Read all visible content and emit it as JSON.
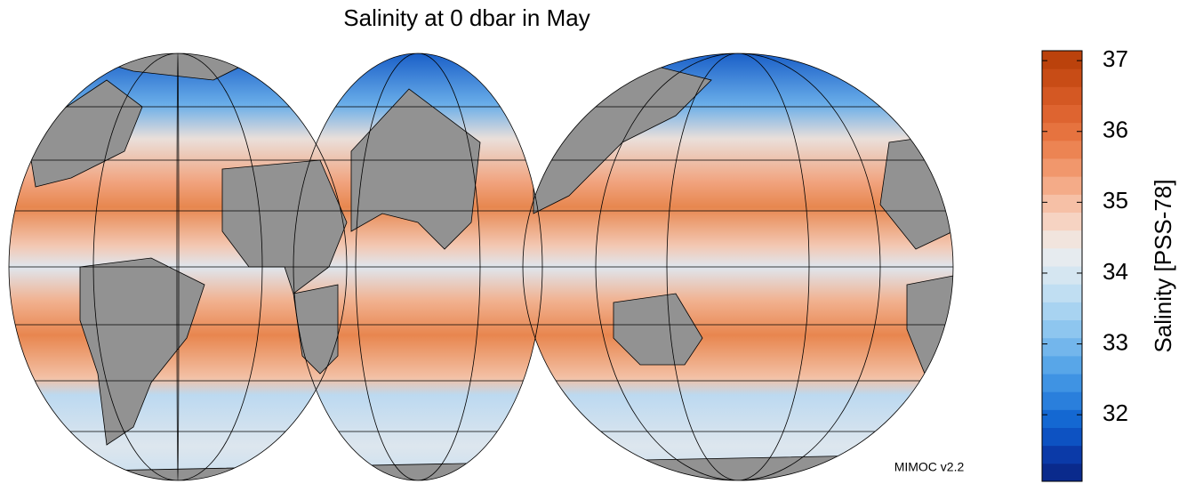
{
  "title": "Salinity at 0 dbar in May",
  "source": "MIMOC v2.2",
  "colorbar": {
    "label": "Salinity [PSS-78]",
    "lim": [
      31.06,
      37.14
    ],
    "ticks": [
      32,
      33,
      34,
      35,
      36,
      37
    ],
    "colors": [
      "#0a2a8c",
      "#0b3aa8",
      "#0d52c2",
      "#1468d2",
      "#2a7fdc",
      "#3f93e3",
      "#58a6e8",
      "#73b6ec",
      "#8ec6ef",
      "#a8d3f1",
      "#c0def2",
      "#d5e6f1",
      "#e6ebef",
      "#f1e4dd",
      "#f6d3c2",
      "#f6c0a6",
      "#f4ab88",
      "#f1976c",
      "#ec8453",
      "#e6733f",
      "#de6430",
      "#d45823",
      "#c84c16",
      "#bb420c"
    ]
  }
}
